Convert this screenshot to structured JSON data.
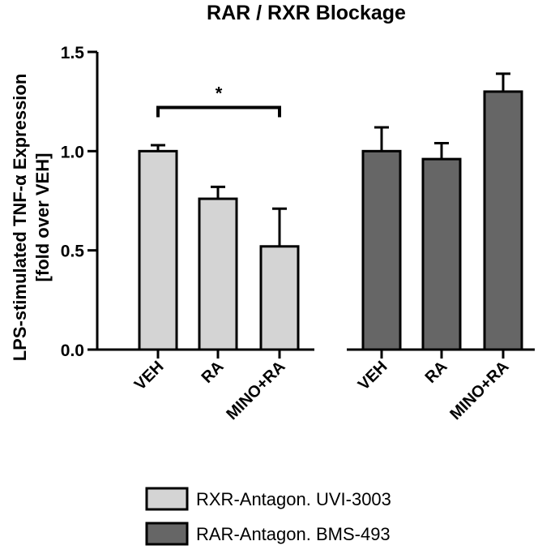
{
  "chart_data": {
    "type": "bar",
    "title": "RAR / RXR Blockage",
    "ylabel_line1": "LPS-stimulated TNF-α Expression",
    "ylabel_line2": "[fold over VEH]",
    "ylim": [
      0,
      1.5
    ],
    "yticks": [
      "0.0",
      "0.5",
      "1.0",
      "1.5"
    ],
    "ytick_values": [
      0,
      0.5,
      1.0,
      1.5
    ],
    "grid": false,
    "legend_position": "bottom",
    "groups": [
      {
        "name": "RXR-Antagon. UVI-3003",
        "color": "#d4d4d4",
        "categories": [
          "VEH",
          "RA",
          "MINO+RA"
        ],
        "values": [
          1.0,
          0.76,
          0.52
        ],
        "errors": [
          0.03,
          0.06,
          0.19
        ]
      },
      {
        "name": "RAR-Antagon. BMS-493",
        "color": "#666666",
        "categories": [
          "VEH",
          "RA",
          "MINO+RA"
        ],
        "values": [
          1.0,
          0.96,
          1.3
        ],
        "errors": [
          0.12,
          0.08,
          0.09
        ]
      }
    ],
    "annotations": [
      {
        "text": "*",
        "from_category": "VEH",
        "to_category": "MINO+RA",
        "group": 0,
        "value": 1.22
      }
    ]
  }
}
